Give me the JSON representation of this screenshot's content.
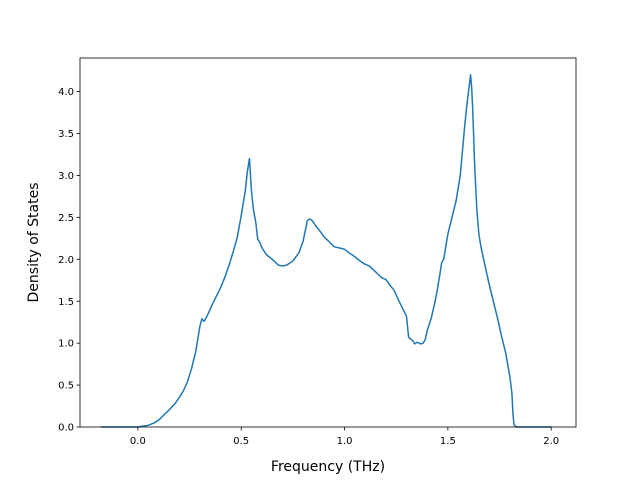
{
  "chart_data": {
    "type": "line",
    "title": "",
    "xlabel": "Frequency (THz)",
    "ylabel": "Density of States",
    "xlim": [
      -0.28,
      2.12
    ],
    "ylim": [
      0.0,
      4.4
    ],
    "xticks": [
      0.0,
      0.5,
      1.0,
      1.5,
      2.0
    ],
    "xtick_labels": [
      "0.0",
      "0.5",
      "1.0",
      "1.5",
      "2.0"
    ],
    "yticks": [
      0.0,
      0.5,
      1.0,
      1.5,
      2.0,
      2.5,
      3.0,
      3.5,
      4.0
    ],
    "ytick_labels": [
      "0.0",
      "0.5",
      "1.0",
      "1.5",
      "2.0",
      "2.5",
      "3.0",
      "3.5",
      "4.0"
    ],
    "grid": false,
    "legend": "none",
    "line_color": "#1f77b4",
    "series": [
      {
        "x": [
          -0.18,
          -0.1,
          0.0,
          0.05,
          0.08,
          0.1,
          0.12,
          0.15,
          0.18,
          0.2,
          0.22,
          0.24,
          0.26,
          0.28,
          0.29,
          0.3,
          0.31,
          0.32,
          0.33,
          0.34,
          0.36,
          0.38,
          0.4,
          0.42,
          0.44,
          0.46,
          0.48,
          0.5,
          0.52,
          0.53,
          0.54,
          0.55,
          0.56,
          0.57,
          0.58,
          0.59,
          0.6,
          0.62,
          0.65,
          0.68,
          0.7,
          0.72,
          0.75,
          0.78,
          0.8,
          0.82,
          0.83,
          0.84,
          0.85,
          0.86,
          0.88,
          0.9,
          0.95,
          1.0,
          1.02,
          1.05,
          1.08,
          1.1,
          1.12,
          1.15,
          1.18,
          1.2,
          1.22,
          1.24,
          1.26,
          1.28,
          1.3,
          1.31,
          1.32,
          1.33,
          1.34,
          1.35,
          1.37,
          1.38,
          1.39,
          1.4,
          1.42,
          1.44,
          1.45,
          1.46,
          1.47,
          1.48,
          1.5,
          1.52,
          1.54,
          1.56,
          1.58,
          1.59,
          1.6,
          1.61,
          1.615,
          1.62,
          1.63,
          1.64,
          1.65,
          1.66,
          1.68,
          1.7,
          1.72,
          1.74,
          1.76,
          1.78,
          1.8,
          1.81,
          1.815,
          1.82,
          1.83,
          1.85,
          2.0
        ],
        "y": [
          0.0,
          0.0,
          0.0,
          0.02,
          0.05,
          0.08,
          0.13,
          0.2,
          0.28,
          0.35,
          0.43,
          0.54,
          0.7,
          0.9,
          1.05,
          1.2,
          1.29,
          1.26,
          1.3,
          1.35,
          1.46,
          1.56,
          1.66,
          1.78,
          1.92,
          2.08,
          2.25,
          2.52,
          2.82,
          3.05,
          3.2,
          2.8,
          2.58,
          2.45,
          2.24,
          2.2,
          2.14,
          2.06,
          2.0,
          1.93,
          1.92,
          1.93,
          1.98,
          2.08,
          2.22,
          2.46,
          2.48,
          2.47,
          2.44,
          2.4,
          2.34,
          2.27,
          2.15,
          2.12,
          2.08,
          2.03,
          1.97,
          1.94,
          1.92,
          1.85,
          1.78,
          1.76,
          1.69,
          1.63,
          1.52,
          1.42,
          1.32,
          1.07,
          1.05,
          1.03,
          0.99,
          1.01,
          0.99,
          1.0,
          1.04,
          1.15,
          1.3,
          1.52,
          1.65,
          1.8,
          1.96,
          2.0,
          2.3,
          2.5,
          2.7,
          3.0,
          3.55,
          3.8,
          4.0,
          4.2,
          4.05,
          3.8,
          3.1,
          2.6,
          2.3,
          2.15,
          1.92,
          1.7,
          1.5,
          1.3,
          1.08,
          0.88,
          0.6,
          0.4,
          0.15,
          0.03,
          0.0,
          0.0,
          0.0
        ]
      }
    ]
  }
}
